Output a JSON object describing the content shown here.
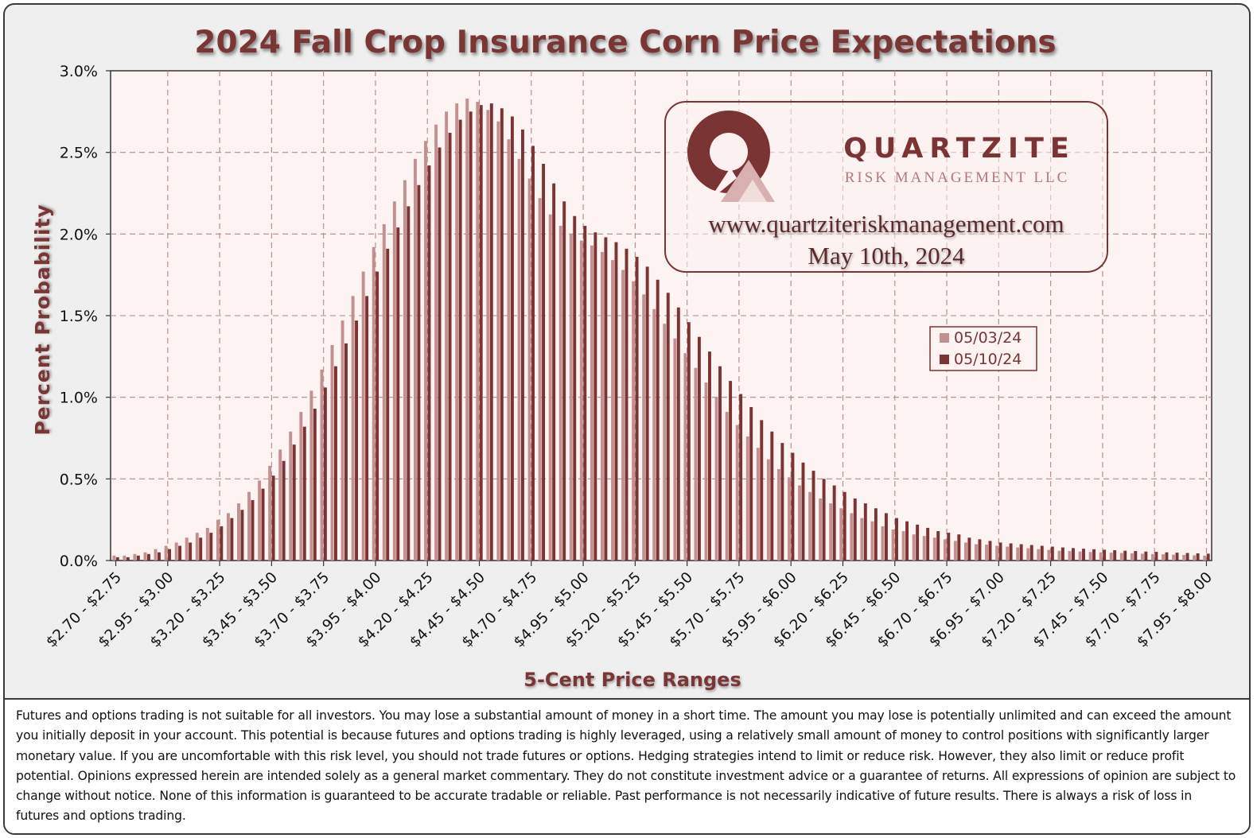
{
  "chart_data": {
    "type": "bar",
    "title": "2024 Fall Crop Insurance Corn Price Expectations",
    "xlabel": "5-Cent Price Ranges",
    "ylabel": "Percent Probability",
    "ylim": [
      0,
      3.0
    ],
    "yticks": [
      "0.0%",
      "0.5%",
      "1.0%",
      "1.5%",
      "2.0%",
      "2.5%",
      "3.0%"
    ],
    "grid": true,
    "legend_position": "right",
    "bins_start": 2.7,
    "bin_width": 0.05,
    "tick_labels": [
      "$2.70 - $2.75",
      "$2.95 - $3.00",
      "$3.20 - $3.25",
      "$3.45 - $3.50",
      "$3.70 - $3.75",
      "$3.95 - $4.00",
      "$4.20 - $4.25",
      "$4.45 - $4.50",
      "$4.70 - $4.75",
      "$4.95 - $5.00",
      "$5.20 - $5.25",
      "$5.45 - $5.50",
      "$5.70 - $5.75",
      "$5.95 - $6.00",
      "$6.20 - $6.25",
      "$6.45 - $6.50",
      "$6.70 - $6.75",
      "$6.95 - $7.00",
      "$7.20 - $7.25",
      "$7.45 - $7.50",
      "$7.70 - $7.75",
      "$7.95 - $8.00"
    ],
    "series": [
      {
        "name": "05/03/24",
        "color": "#c48f8f",
        "values": [
          0.03,
          0.03,
          0.04,
          0.05,
          0.07,
          0.09,
          0.11,
          0.14,
          0.17,
          0.2,
          0.25,
          0.29,
          0.35,
          0.42,
          0.49,
          0.58,
          0.68,
          0.79,
          0.91,
          1.04,
          1.17,
          1.32,
          1.47,
          1.62,
          1.77,
          1.92,
          2.06,
          2.2,
          2.33,
          2.46,
          2.57,
          2.67,
          2.75,
          2.8,
          2.83,
          2.81,
          2.76,
          2.69,
          2.58,
          2.46,
          2.34,
          2.22,
          2.12,
          2.05,
          2.0,
          1.96,
          1.93,
          1.89,
          1.84,
          1.78,
          1.71,
          1.63,
          1.54,
          1.45,
          1.36,
          1.27,
          1.18,
          1.09,
          1.0,
          0.91,
          0.83,
          0.76,
          0.69,
          0.62,
          0.56,
          0.51,
          0.46,
          0.42,
          0.38,
          0.35,
          0.32,
          0.29,
          0.26,
          0.24,
          0.21,
          0.19,
          0.18,
          0.16,
          0.15,
          0.14,
          0.13,
          0.12,
          0.11,
          0.1,
          0.097,
          0.09,
          0.085,
          0.08,
          0.075,
          0.07,
          0.065,
          0.06,
          0.058,
          0.055,
          0.052,
          0.05,
          0.048,
          0.046,
          0.044,
          0.042,
          0.04,
          0.038,
          0.036,
          0.034,
          0.032,
          0.03
        ]
      },
      {
        "name": "05/10/24",
        "color": "#7a3434",
        "values": [
          0.02,
          0.02,
          0.03,
          0.04,
          0.05,
          0.07,
          0.09,
          0.11,
          0.14,
          0.17,
          0.21,
          0.26,
          0.31,
          0.37,
          0.44,
          0.52,
          0.61,
          0.71,
          0.82,
          0.93,
          1.06,
          1.19,
          1.33,
          1.47,
          1.62,
          1.77,
          1.91,
          2.04,
          2.17,
          2.3,
          2.42,
          2.53,
          2.62,
          2.7,
          2.75,
          2.79,
          2.8,
          2.77,
          2.72,
          2.64,
          2.54,
          2.43,
          2.31,
          2.2,
          2.11,
          2.05,
          2.01,
          1.98,
          1.95,
          1.91,
          1.86,
          1.8,
          1.72,
          1.64,
          1.55,
          1.46,
          1.37,
          1.28,
          1.19,
          1.1,
          1.02,
          0.94,
          0.86,
          0.79,
          0.72,
          0.66,
          0.6,
          0.55,
          0.5,
          0.46,
          0.42,
          0.38,
          0.35,
          0.32,
          0.29,
          0.26,
          0.24,
          0.22,
          0.2,
          0.18,
          0.17,
          0.16,
          0.14,
          0.13,
          0.12,
          0.11,
          0.105,
          0.1,
          0.095,
          0.09,
          0.085,
          0.08,
          0.076,
          0.072,
          0.069,
          0.066,
          0.063,
          0.06,
          0.058,
          0.055,
          0.053,
          0.05,
          0.048,
          0.046,
          0.044,
          0.042
        ]
      }
    ]
  },
  "logo": {
    "name": "QUARTZITE",
    "subtitle": "RISK MANAGEMENT LLC",
    "url": "www.quartziteriskmanagement.com",
    "date": "May 10th, 2024"
  },
  "disclaimer": "Futures and options trading is not suitable for all investors. You may lose a substantial amount of money in a short time. The amount you may lose is potentially unlimited and can exceed the amount you initially deposit in your account. This potential is because futures and options trading is highly leveraged, using a relatively small amount of money to control positions with significantly larger monetary value. If you are uncomfortable with this risk level, you should not trade futures or options. Hedging strategies intend to limit or reduce risk. However, they also limit or reduce profit potential. Opinions expressed herein are intended solely as a general market commentary. They do not constitute investment advice or a guarantee of returns. All expressions of opinion are subject to change without notice. None of this information is guaranteed to be accurate tradable or reliable. Past performance is not necessarily indicative of future results. There is always a risk of loss in futures and options trading."
}
